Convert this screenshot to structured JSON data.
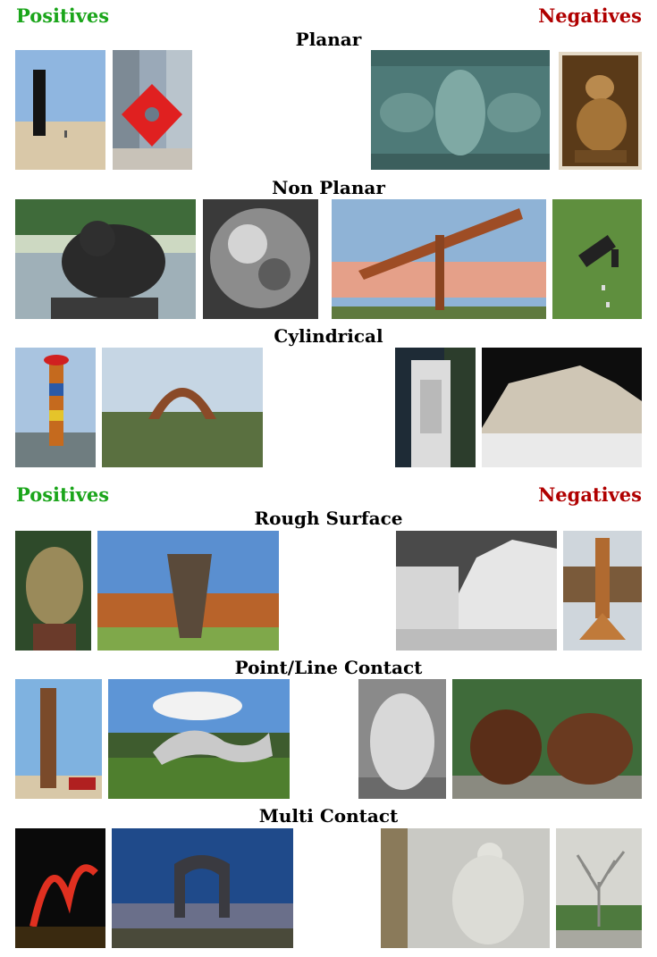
{
  "headers": {
    "positives": "Positives",
    "negatives": "Negatives"
  },
  "sections": [
    {
      "title": "Planar"
    },
    {
      "title": "Non Planar"
    },
    {
      "title": "Cylindrical"
    },
    {
      "title": "Rough Surface"
    },
    {
      "title": "Point/Line Contact"
    },
    {
      "title": "Multi Contact"
    }
  ],
  "colors": {
    "positives": "#1aa51a",
    "negatives": "#b00000"
  }
}
